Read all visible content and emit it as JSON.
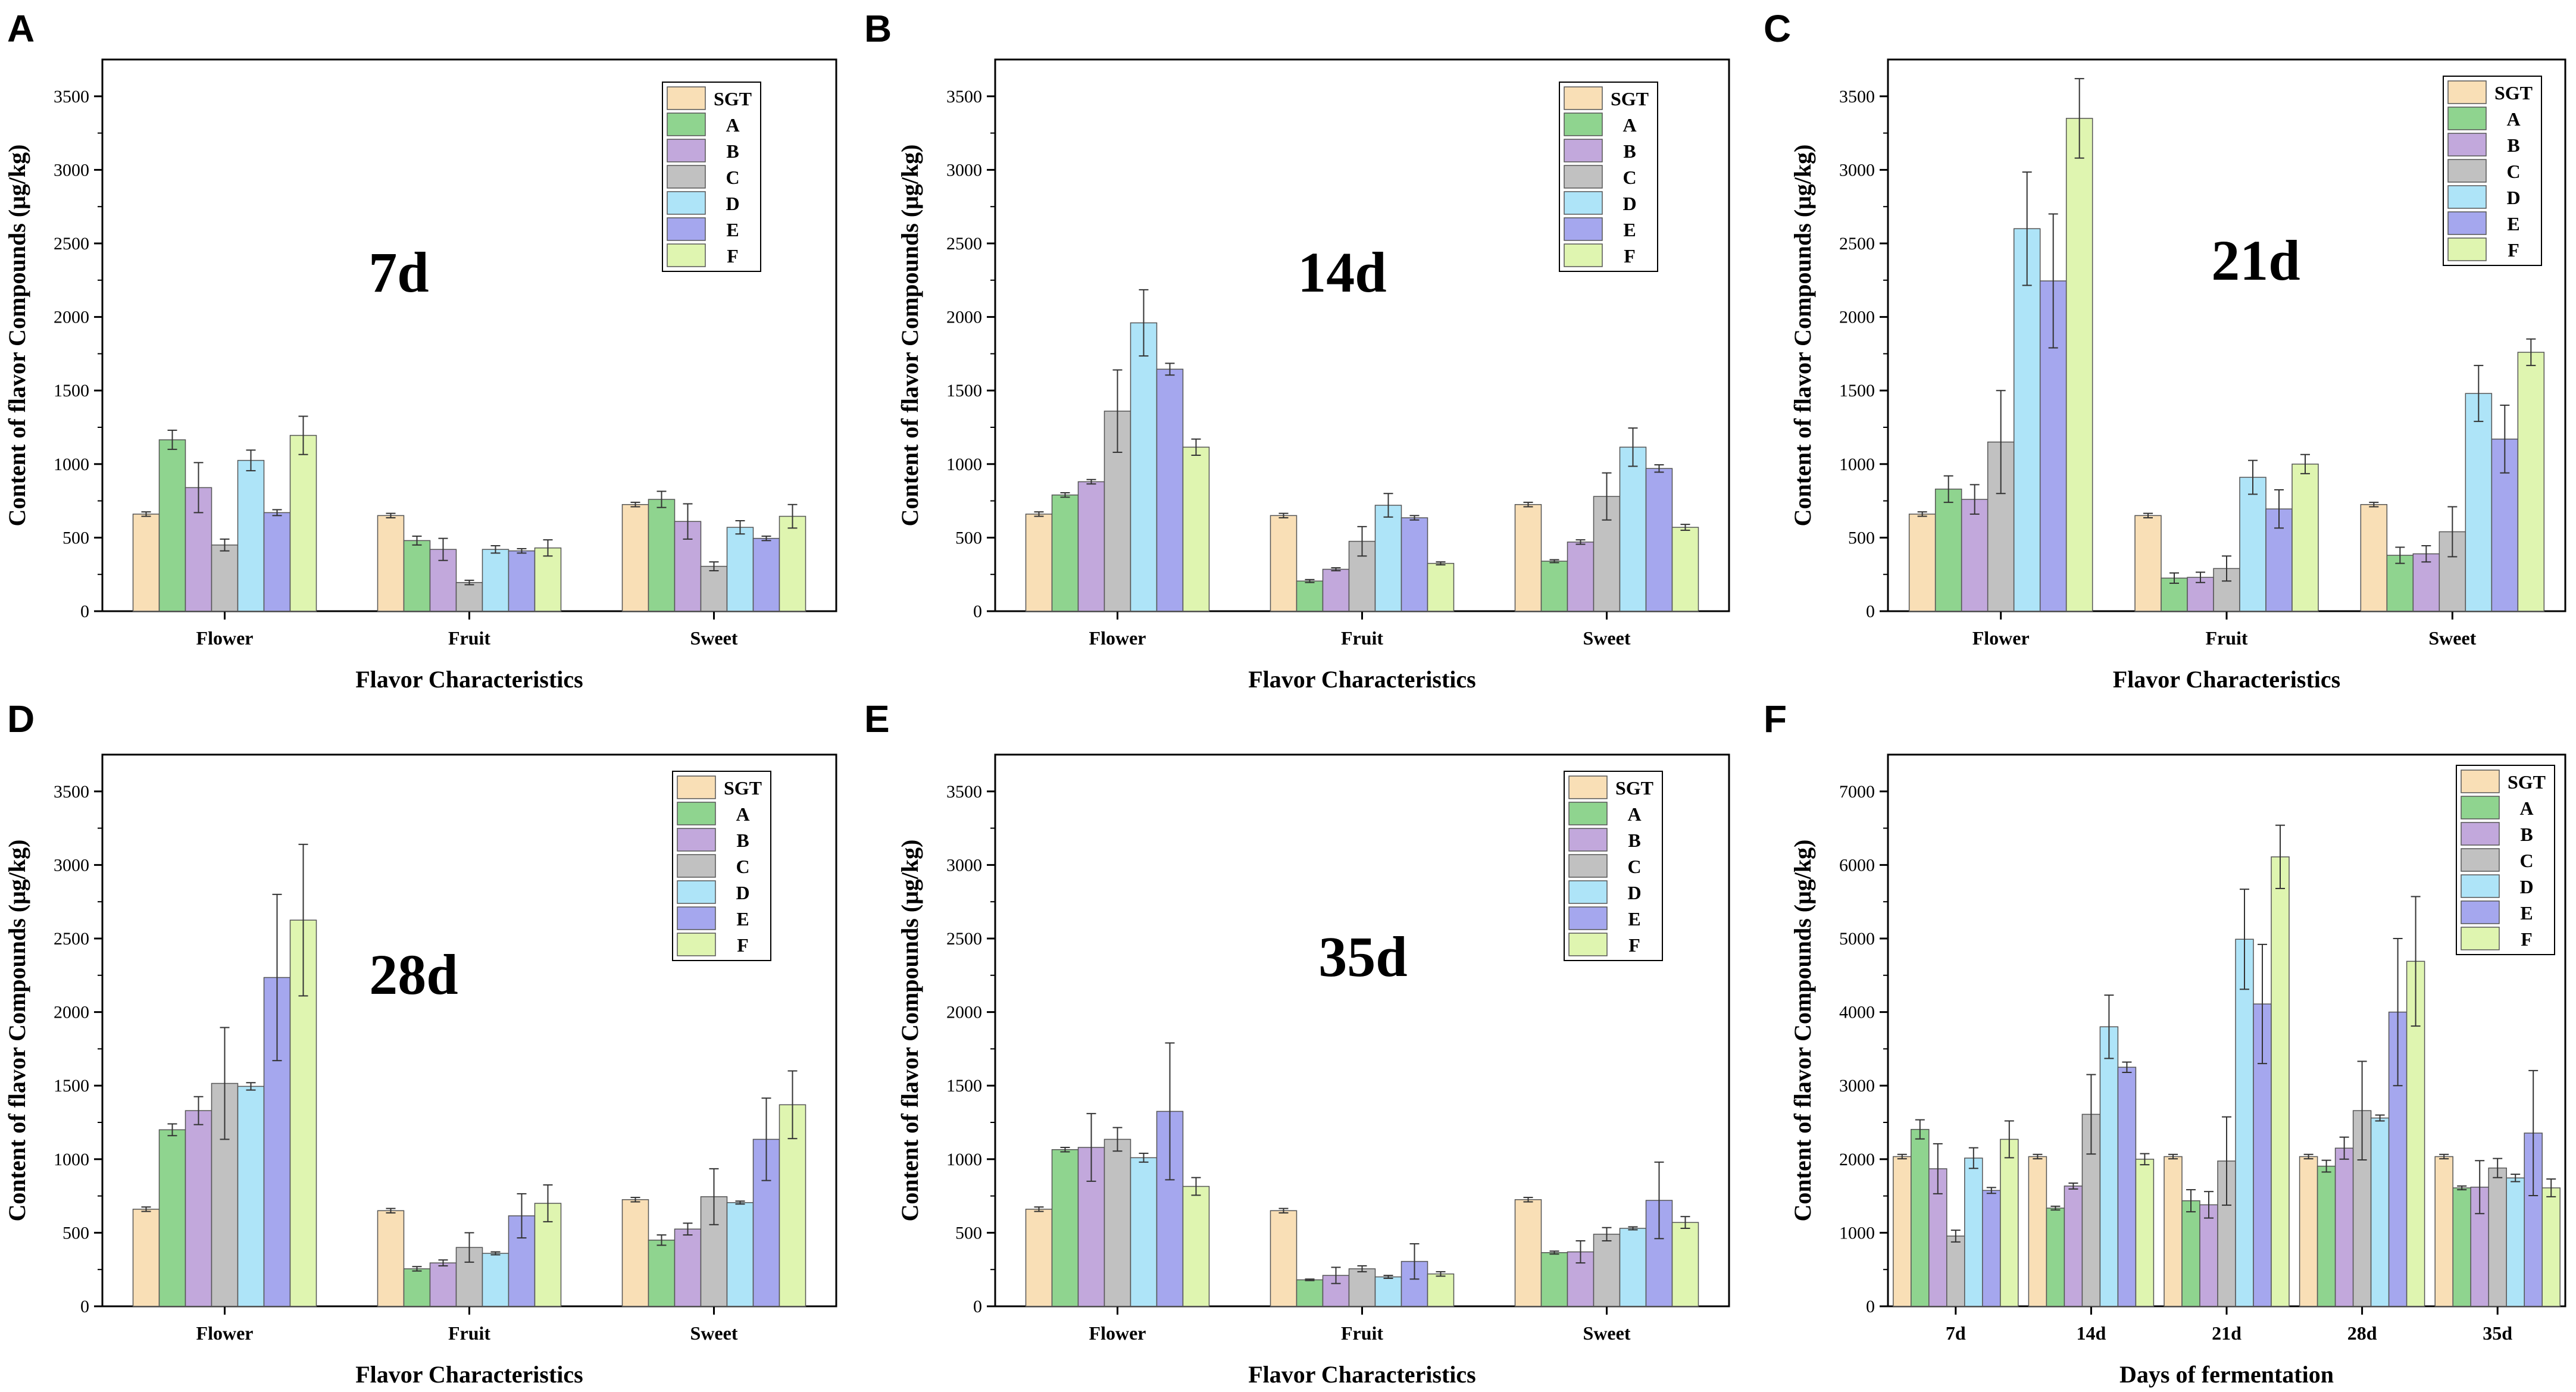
{
  "colors": {
    "SGT": "#f9dfb6",
    "A": "#8fd48f",
    "B": "#c2a8dc",
    "C": "#c1c1c1",
    "D": "#aee4f8",
    "E": "#a5a7ee",
    "F": "#dff5b0"
  },
  "chart_data": [
    {
      "type": "bar",
      "panel": "A",
      "title": "7d",
      "xlabel": "Flavor Characteristics",
      "ylabel": "Content of flavor Compounds (μg/kg)",
      "ylim": [
        0,
        3750
      ],
      "yticks": [
        0,
        500,
        1000,
        1500,
        2000,
        2500,
        3000,
        3500
      ],
      "categories": [
        "Flower",
        "Fruit",
        "Sweet"
      ],
      "legend": [
        "SGT",
        "A",
        "B",
        "C",
        "D",
        "E",
        "F"
      ],
      "series": [
        {
          "name": "SGT",
          "values": [
            660,
            650,
            725
          ],
          "errors": [
            15,
            15,
            15
          ]
        },
        {
          "name": "A",
          "values": [
            1165,
            480,
            760
          ],
          "errors": [
            65,
            30,
            55
          ]
        },
        {
          "name": "B",
          "values": [
            840,
            420,
            610
          ],
          "errors": [
            170,
            75,
            120
          ]
        },
        {
          "name": "C",
          "values": [
            450,
            195,
            305
          ],
          "errors": [
            40,
            15,
            30
          ]
        },
        {
          "name": "D",
          "values": [
            1025,
            420,
            570
          ],
          "errors": [
            70,
            25,
            45
          ]
        },
        {
          "name": "E",
          "values": [
            670,
            410,
            495
          ],
          "errors": [
            20,
            15,
            15
          ]
        },
        {
          "name": "F",
          "values": [
            1195,
            430,
            645
          ],
          "errors": [
            130,
            55,
            80
          ]
        }
      ]
    },
    {
      "type": "bar",
      "panel": "B",
      "title": "14d",
      "xlabel": "Flavor Characteristics",
      "ylabel": "Content of flavor Compounds (μg/kg)",
      "ylim": [
        0,
        3750
      ],
      "yticks": [
        0,
        500,
        1000,
        1500,
        2000,
        2500,
        3000,
        3500
      ],
      "categories": [
        "Flower",
        "Fruit",
        "Sweet"
      ],
      "legend": [
        "SGT",
        "A",
        "B",
        "C",
        "D",
        "E",
        "F"
      ],
      "series": [
        {
          "name": "SGT",
          "values": [
            660,
            650,
            725
          ],
          "errors": [
            15,
            15,
            15
          ]
        },
        {
          "name": "A",
          "values": [
            790,
            205,
            340
          ],
          "errors": [
            15,
            10,
            10
          ]
        },
        {
          "name": "B",
          "values": [
            880,
            285,
            470
          ],
          "errors": [
            15,
            10,
            15
          ]
        },
        {
          "name": "C",
          "values": [
            1360,
            475,
            780
          ],
          "errors": [
            280,
            100,
            160
          ]
        },
        {
          "name": "D",
          "values": [
            1960,
            720,
            1115
          ],
          "errors": [
            225,
            80,
            130
          ]
        },
        {
          "name": "E",
          "values": [
            1645,
            635,
            970
          ],
          "errors": [
            40,
            15,
            25
          ]
        },
        {
          "name": "F",
          "values": [
            1115,
            325,
            570
          ],
          "errors": [
            55,
            10,
            20
          ]
        }
      ]
    },
    {
      "type": "bar",
      "panel": "C",
      "title": "21d",
      "xlabel": "Flavor Characteristics",
      "ylabel": "Content of flavor Compounds (μg/kg)",
      "ylim": [
        0,
        3750
      ],
      "yticks": [
        0,
        500,
        1000,
        1500,
        2000,
        2500,
        3000,
        3500
      ],
      "categories": [
        "Flower",
        "Fruit",
        "Sweet"
      ],
      "legend": [
        "SGT",
        "A",
        "B",
        "C",
        "D",
        "E",
        "F"
      ],
      "series": [
        {
          "name": "SGT",
          "values": [
            660,
            650,
            725
          ],
          "errors": [
            15,
            15,
            15
          ]
        },
        {
          "name": "A",
          "values": [
            830,
            225,
            380
          ],
          "errors": [
            90,
            35,
            55
          ]
        },
        {
          "name": "B",
          "values": [
            760,
            230,
            390
          ],
          "errors": [
            100,
            35,
            55
          ]
        },
        {
          "name": "C",
          "values": [
            1150,
            290,
            540
          ],
          "errors": [
            350,
            85,
            170
          ]
        },
        {
          "name": "D",
          "values": [
            2600,
            910,
            1480
          ],
          "errors": [
            385,
            115,
            190
          ]
        },
        {
          "name": "E",
          "values": [
            2245,
            695,
            1170
          ],
          "errors": [
            455,
            130,
            230
          ]
        },
        {
          "name": "F",
          "values": [
            3350,
            1000,
            1760
          ],
          "errors": [
            270,
            65,
            90
          ]
        }
      ]
    },
    {
      "type": "bar",
      "panel": "D",
      "title": "28d",
      "xlabel": "Flavor Characteristics",
      "ylabel": "Content of flavor Compounds (μg/kg)",
      "ylim": [
        0,
        3750
      ],
      "yticks": [
        0,
        500,
        1000,
        1500,
        2000,
        2500,
        3000,
        3500
      ],
      "categories": [
        "Flower",
        "Fruit",
        "Sweet"
      ],
      "legend": [
        "SGT",
        "A",
        "B",
        "C",
        "D",
        "E",
        "F"
      ],
      "series": [
        {
          "name": "SGT",
          "values": [
            660,
            650,
            725
          ],
          "errors": [
            15,
            15,
            15
          ]
        },
        {
          "name": "A",
          "values": [
            1200,
            255,
            450
          ],
          "errors": [
            40,
            15,
            35
          ]
        },
        {
          "name": "B",
          "values": [
            1330,
            295,
            525
          ],
          "errors": [
            95,
            20,
            40
          ]
        },
        {
          "name": "C",
          "values": [
            1515,
            400,
            745
          ],
          "errors": [
            380,
            100,
            190
          ]
        },
        {
          "name": "D",
          "values": [
            1495,
            360,
            705
          ],
          "errors": [
            25,
            10,
            10
          ]
        },
        {
          "name": "E",
          "values": [
            2235,
            615,
            1135
          ],
          "errors": [
            565,
            150,
            280
          ]
        },
        {
          "name": "F",
          "values": [
            2625,
            700,
            1370
          ],
          "errors": [
            515,
            125,
            230
          ]
        }
      ]
    },
    {
      "type": "bar",
      "panel": "E",
      "title": "35d",
      "xlabel": "Flavor Characteristics",
      "ylabel": "Content of flavor Compounds (μg/kg)",
      "ylim": [
        0,
        3750
      ],
      "yticks": [
        0,
        500,
        1000,
        1500,
        2000,
        2500,
        3000,
        3500
      ],
      "categories": [
        "Flower",
        "Fruit",
        "Sweet"
      ],
      "legend": [
        "SGT",
        "A",
        "B",
        "C",
        "D",
        "E",
        "F"
      ],
      "series": [
        {
          "name": "SGT",
          "values": [
            660,
            650,
            725
          ],
          "errors": [
            15,
            15,
            15
          ]
        },
        {
          "name": "A",
          "values": [
            1065,
            180,
            365
          ],
          "errors": [
            15,
            5,
            10
          ]
        },
        {
          "name": "B",
          "values": [
            1080,
            210,
            370
          ],
          "errors": [
            230,
            55,
            75
          ]
        },
        {
          "name": "C",
          "values": [
            1135,
            255,
            490
          ],
          "errors": [
            80,
            20,
            45
          ]
        },
        {
          "name": "D",
          "values": [
            1010,
            200,
            530
          ],
          "errors": [
            30,
            10,
            10
          ]
        },
        {
          "name": "E",
          "values": [
            1325,
            305,
            720
          ],
          "errors": [
            465,
            120,
            260
          ]
        },
        {
          "name": "F",
          "values": [
            815,
            220,
            570
          ],
          "errors": [
            60,
            15,
            40
          ]
        }
      ]
    },
    {
      "type": "bar",
      "panel": "F",
      "title": "",
      "xlabel": "Days of fermentation",
      "ylabel": "Content of flavor Compounds (μg/kg)",
      "ylim": [
        0,
        7500
      ],
      "yticks": [
        0,
        1000,
        2000,
        3000,
        4000,
        5000,
        6000,
        7000
      ],
      "categories": [
        "7d",
        "14d",
        "21d",
        "28d",
        "35d"
      ],
      "legend": [
        "SGT",
        "A",
        "B",
        "C",
        "D",
        "E",
        "F"
      ],
      "series": [
        {
          "name": "SGT",
          "values": [
            2035,
            2035,
            2035,
            2035,
            2035
          ],
          "errors": [
            30,
            30,
            30,
            30,
            30
          ]
        },
        {
          "name": "A",
          "values": [
            2405,
            1335,
            1435,
            1905,
            1610
          ],
          "errors": [
            130,
            25,
            150,
            80,
            25
          ]
        },
        {
          "name": "B",
          "values": [
            1870,
            1635,
            1380,
            2150,
            1620
          ],
          "errors": [
            340,
            40,
            180,
            150,
            360
          ]
        },
        {
          "name": "C",
          "values": [
            955,
            2610,
            1975,
            2660,
            1880
          ],
          "errors": [
            80,
            540,
            600,
            670,
            130
          ]
        },
        {
          "name": "D",
          "values": [
            2015,
            3800,
            4990,
            2560,
            1745
          ],
          "errors": [
            140,
            430,
            680,
            40,
            50
          ]
        },
        {
          "name": "E",
          "values": [
            1575,
            3250,
            4110,
            4000,
            2355
          ],
          "errors": [
            40,
            70,
            810,
            1000,
            850
          ]
        },
        {
          "name": "F",
          "values": [
            2270,
            2000,
            6110,
            4690,
            1610
          ],
          "errors": [
            250,
            75,
            430,
            880,
            120
          ]
        }
      ]
    }
  ]
}
